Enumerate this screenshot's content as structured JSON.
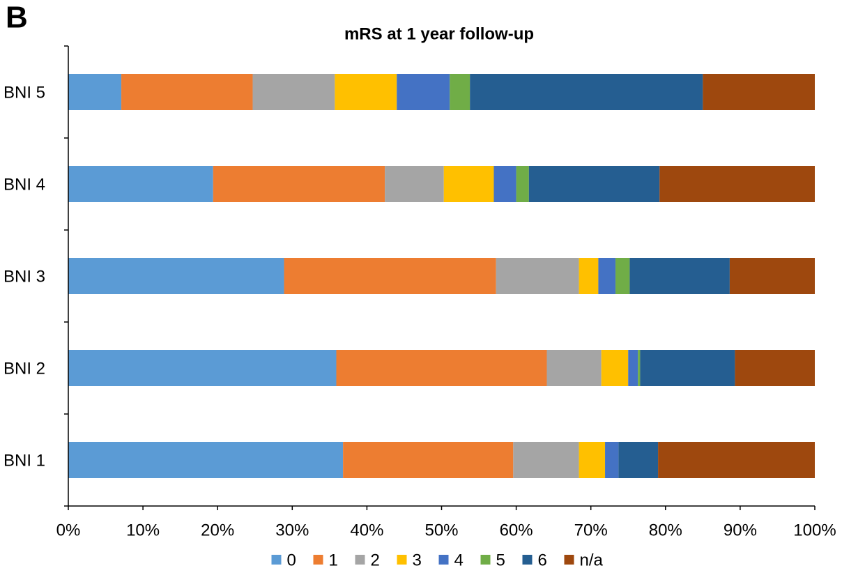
{
  "chart_data": {
    "type": "stacked_bar_horizontal",
    "panel_label": "B",
    "title": "mRS at 1 year follow-up",
    "categories": [
      "BNI 1",
      "BNI 2",
      "BNI 3",
      "BNI 4",
      "BNI 5"
    ],
    "series": [
      {
        "name": "0",
        "color": "#5b9bd5",
        "values": [
          36.8,
          35.9,
          28.9,
          19.4,
          7.1
        ]
      },
      {
        "name": "1",
        "color": "#ed7d31",
        "values": [
          22.8,
          28.2,
          28.4,
          23.0,
          17.6
        ]
      },
      {
        "name": "2",
        "color": "#a5a5a5",
        "values": [
          8.8,
          7.3,
          11.1,
          7.9,
          11.0
        ]
      },
      {
        "name": "3",
        "color": "#ffc000",
        "values": [
          3.5,
          3.6,
          2.6,
          6.7,
          8.3
        ]
      },
      {
        "name": "4",
        "color": "#4472c4",
        "values": [
          1.8,
          1.3,
          2.3,
          3.0,
          7.1
        ]
      },
      {
        "name": "5",
        "color": "#70ad47",
        "values": [
          0,
          0.3,
          1.9,
          1.7,
          2.7
        ]
      },
      {
        "name": "6",
        "color": "#255e91",
        "values": [
          5.3,
          12.7,
          13.4,
          17.5,
          31.2
        ]
      },
      {
        "name": "n/a",
        "color": "#9e480e",
        "values": [
          21.0,
          10.7,
          11.4,
          20.8,
          15.0
        ]
      }
    ],
    "xlim": [
      0,
      100
    ],
    "xticks": [
      {
        "value": 0,
        "label": "0%"
      },
      {
        "value": 10,
        "label": "10%"
      },
      {
        "value": 20,
        "label": "20%"
      },
      {
        "value": 30,
        "label": "30%"
      },
      {
        "value": 40,
        "label": "40%"
      },
      {
        "value": 50,
        "label": "50%"
      },
      {
        "value": 60,
        "label": "60%"
      },
      {
        "value": 70,
        "label": "70%"
      },
      {
        "value": 80,
        "label": "80%"
      },
      {
        "value": 90,
        "label": "90%"
      },
      {
        "value": 100,
        "label": "100%"
      }
    ],
    "legend": "bottom"
  }
}
